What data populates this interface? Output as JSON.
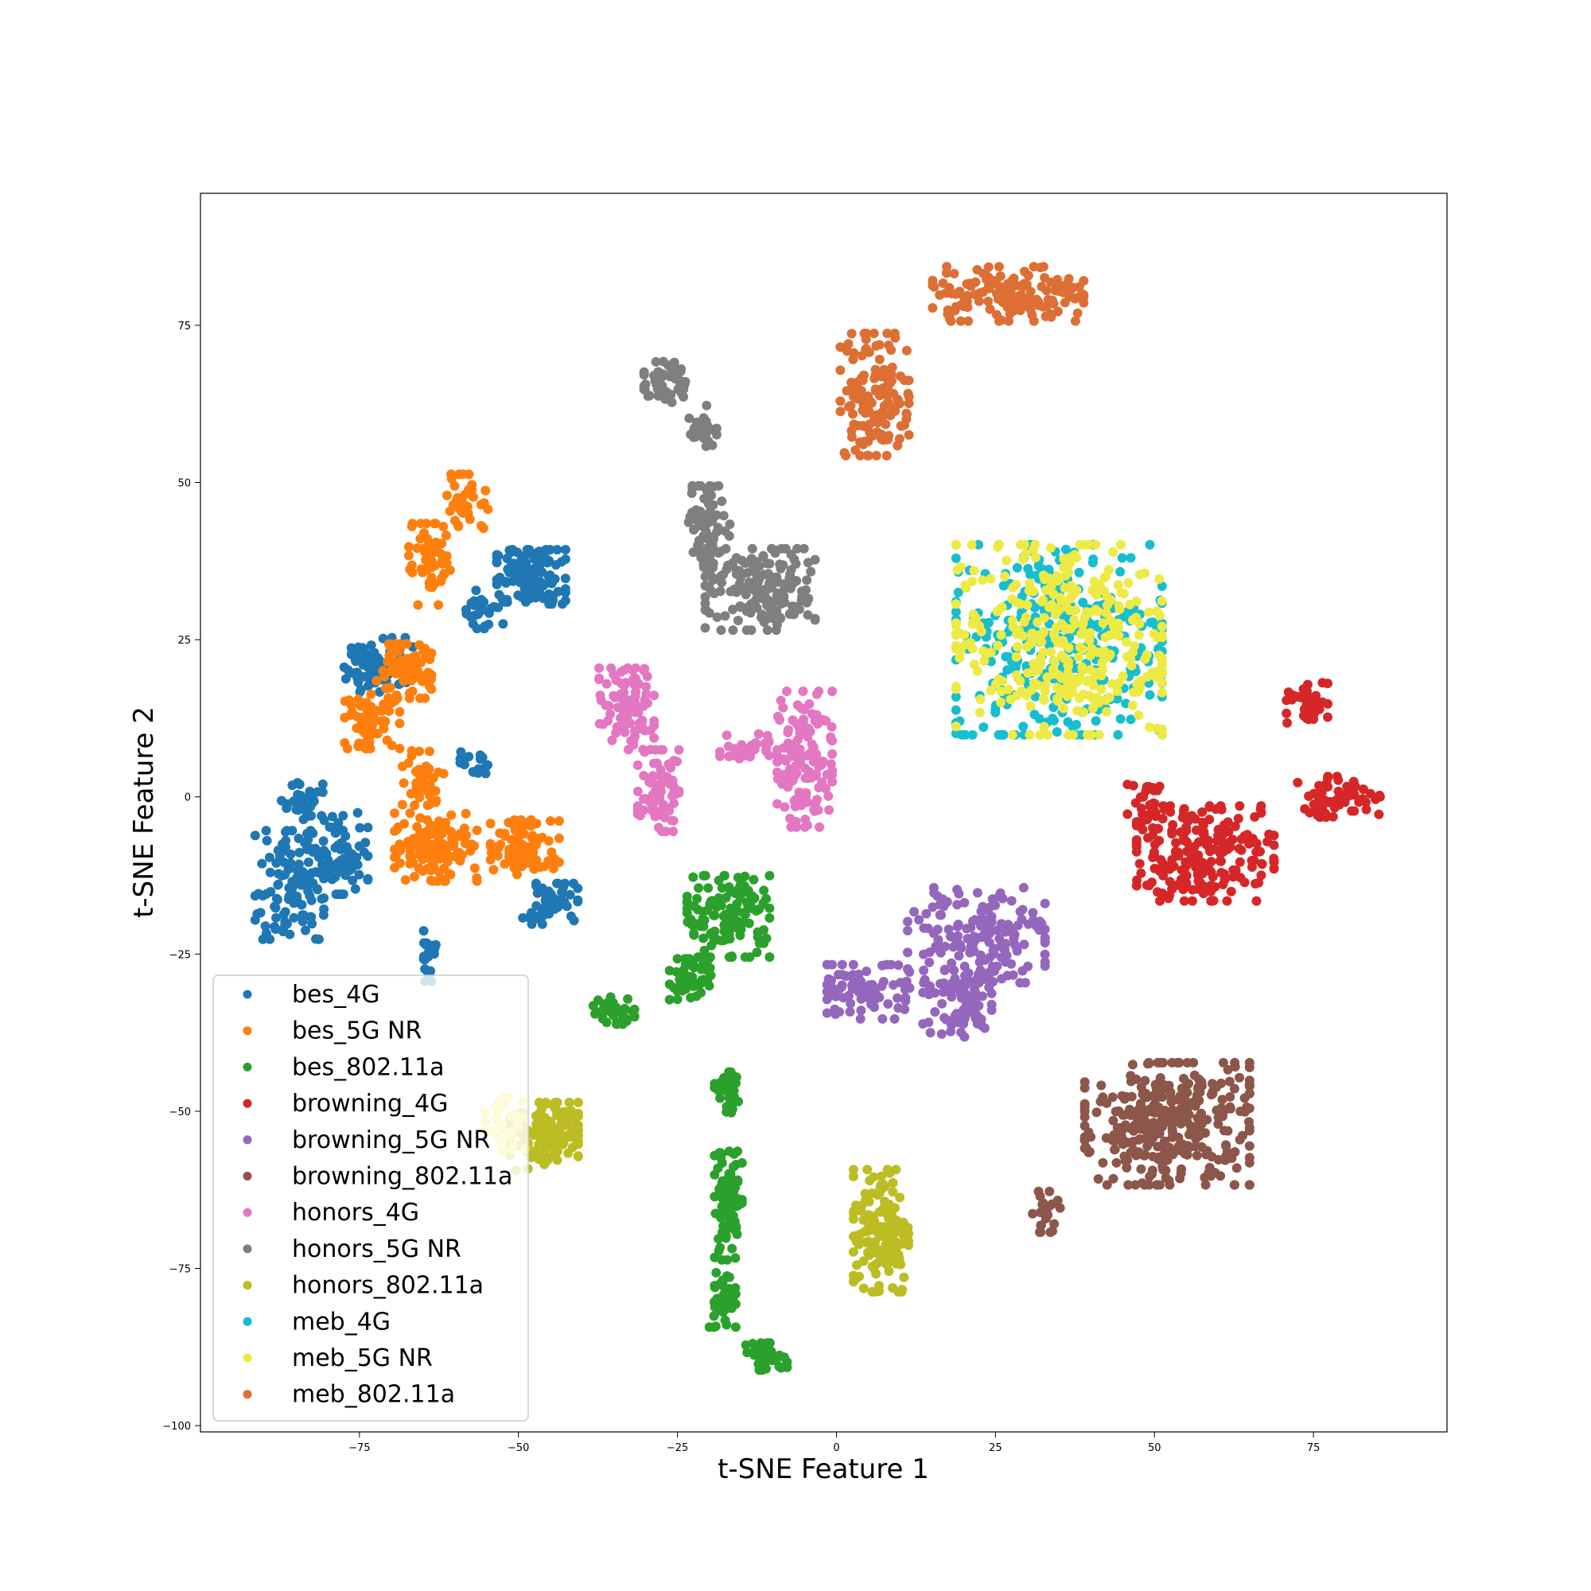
{
  "chart_data": {
    "type": "scatter",
    "title": "",
    "xlabel": "t-SNE Feature 1",
    "ylabel": "t-SNE Feature 2",
    "xlim": [
      -100,
      96
    ],
    "ylim": [
      -101,
      96
    ],
    "xticks": [
      -75,
      -50,
      -25,
      0,
      25,
      50,
      75
    ],
    "yticks": [
      75,
      50,
      25,
      0,
      -25,
      -50,
      -75,
      -100
    ],
    "grid": false,
    "legend_position": "lower-left",
    "series": [
      {
        "name": "bes_4G",
        "color": "#1f77b4",
        "clusters": [
          {
            "cx": -48,
            "cy": 35,
            "rx": 5,
            "ry": 4,
            "n": 120
          },
          {
            "cx": -55,
            "cy": 30,
            "rx": 3,
            "ry": 3,
            "n": 30
          },
          {
            "cx": -72,
            "cy": 21,
            "rx": 5,
            "ry": 4,
            "n": 70
          },
          {
            "cx": -86,
            "cy": -14,
            "rx": 5,
            "ry": 8,
            "n": 120
          },
          {
            "cx": -78,
            "cy": -9,
            "rx": 4,
            "ry": 6,
            "n": 70
          },
          {
            "cx": -84,
            "cy": -1,
            "rx": 3,
            "ry": 3,
            "n": 35
          },
          {
            "cx": -45,
            "cy": -17,
            "rx": 4,
            "ry": 3,
            "n": 60
          },
          {
            "cx": -57,
            "cy": 5,
            "rx": 2,
            "ry": 2,
            "n": 15
          },
          {
            "cx": -64,
            "cy": -25,
            "rx": 1,
            "ry": 4,
            "n": 25
          }
        ]
      },
      {
        "name": "bes_5G NR",
        "color": "#ff7f0e",
        "clusters": [
          {
            "cx": -58,
            "cy": 47,
            "rx": 3,
            "ry": 4,
            "n": 35
          },
          {
            "cx": -64,
            "cy": 37,
            "rx": 3,
            "ry": 6,
            "n": 60
          },
          {
            "cx": -68,
            "cy": 20,
            "rx": 4,
            "ry": 4,
            "n": 80
          },
          {
            "cx": -73,
            "cy": 12,
            "rx": 4,
            "ry": 4,
            "n": 60
          },
          {
            "cx": -65,
            "cy": 3,
            "rx": 3,
            "ry": 4,
            "n": 40
          },
          {
            "cx": -63,
            "cy": -8,
            "rx": 6,
            "ry": 5,
            "n": 130
          },
          {
            "cx": -49,
            "cy": -8,
            "rx": 5,
            "ry": 4,
            "n": 90
          }
        ]
      },
      {
        "name": "bes_802.11a",
        "color": "#2ca02c",
        "clusters": [
          {
            "cx": -17,
            "cy": -19,
            "rx": 6,
            "ry": 6,
            "n": 140
          },
          {
            "cx": -23,
            "cy": -29,
            "rx": 3,
            "ry": 3,
            "n": 60
          },
          {
            "cx": -35,
            "cy": -34,
            "rx": 3,
            "ry": 2,
            "n": 40
          },
          {
            "cx": -17,
            "cy": -47,
            "rx": 2,
            "ry": 3,
            "n": 35
          },
          {
            "cx": -17,
            "cy": -65,
            "rx": 2,
            "ry": 8,
            "n": 100
          },
          {
            "cx": -18,
            "cy": -80,
            "rx": 2,
            "ry": 4,
            "n": 40
          },
          {
            "cx": -11,
            "cy": -89,
            "rx": 3,
            "ry": 2,
            "n": 40
          }
        ]
      },
      {
        "name": "browning_4G",
        "color": "#d62728",
        "clusters": [
          {
            "cx": 58,
            "cy": -9,
            "rx": 10,
            "ry": 7,
            "n": 220
          },
          {
            "cx": 49,
            "cy": -1,
            "rx": 3,
            "ry": 3,
            "n": 25
          },
          {
            "cx": 79,
            "cy": 0,
            "rx": 6,
            "ry": 3,
            "n": 60
          },
          {
            "cx": 74,
            "cy": 15,
            "rx": 3,
            "ry": 3,
            "n": 35
          }
        ]
      },
      {
        "name": "browning_5G NR",
        "color": "#9467bd",
        "clusters": [
          {
            "cx": 22,
            "cy": -22,
            "rx": 10,
            "ry": 7,
            "n": 170
          },
          {
            "cx": 19,
            "cy": -33,
            "rx": 5,
            "ry": 5,
            "n": 80
          },
          {
            "cx": 5,
            "cy": -31,
            "rx": 6,
            "ry": 4,
            "n": 90
          }
        ]
      },
      {
        "name": "browning_802.11a",
        "color": "#8c564b",
        "clusters": [
          {
            "cx": 52,
            "cy": -52,
            "rx": 12,
            "ry": 9,
            "n": 340
          },
          {
            "cx": 33,
            "cy": -66,
            "rx": 2,
            "ry": 3,
            "n": 25
          }
        ]
      },
      {
        "name": "honors_4G",
        "color": "#e377c2",
        "clusters": [
          {
            "cx": -33,
            "cy": 14,
            "rx": 4,
            "ry": 6,
            "n": 90
          },
          {
            "cx": -28,
            "cy": 1,
            "rx": 3,
            "ry": 6,
            "n": 70
          },
          {
            "cx": -5,
            "cy": 6,
            "rx": 4,
            "ry": 10,
            "n": 130
          },
          {
            "cx": -14,
            "cy": 8,
            "rx": 4,
            "ry": 2,
            "n": 30
          }
        ]
      },
      {
        "name": "honors_5G NR",
        "color": "#7f7f7f",
        "clusters": [
          {
            "cx": -27,
            "cy": 66,
            "rx": 3,
            "ry": 3,
            "n": 45
          },
          {
            "cx": -21,
            "cy": 59,
            "rx": 2,
            "ry": 3,
            "n": 25
          },
          {
            "cx": -20,
            "cy": 43,
            "rx": 3,
            "ry": 6,
            "n": 80
          },
          {
            "cx": -12,
            "cy": 33,
            "rx": 8,
            "ry": 6,
            "n": 170
          }
        ]
      },
      {
        "name": "honors_802.11a",
        "color": "#bcbd22",
        "clusters": [
          {
            "cx": -46,
            "cy": -54,
            "rx": 5,
            "ry": 5,
            "n": 130
          },
          {
            "cx": 7,
            "cy": -69,
            "rx": 4,
            "ry": 9,
            "n": 160
          }
        ]
      },
      {
        "name": "meb_4G",
        "color": "#17becf",
        "clusters": [
          {
            "cx": 35,
            "cy": 25,
            "rx": 15,
            "ry": 14,
            "n": 300
          }
        ]
      },
      {
        "name": "meb_5G NR",
        "color": "#eeea45",
        "clusters": [
          {
            "cx": 35,
            "cy": 25,
            "rx": 15,
            "ry": 14,
            "n": 360
          },
          {
            "cx": -52,
            "cy": -52,
            "rx": 3,
            "ry": 4,
            "n": 30
          }
        ]
      },
      {
        "name": "meb_802.11a",
        "color": "#dd6f35",
        "clusters": [
          {
            "cx": 6,
            "cy": 64,
            "rx": 5,
            "ry": 9,
            "n": 140
          },
          {
            "cx": 27,
            "cy": 80,
            "rx": 11,
            "ry": 4,
            "n": 150
          }
        ]
      }
    ]
  }
}
